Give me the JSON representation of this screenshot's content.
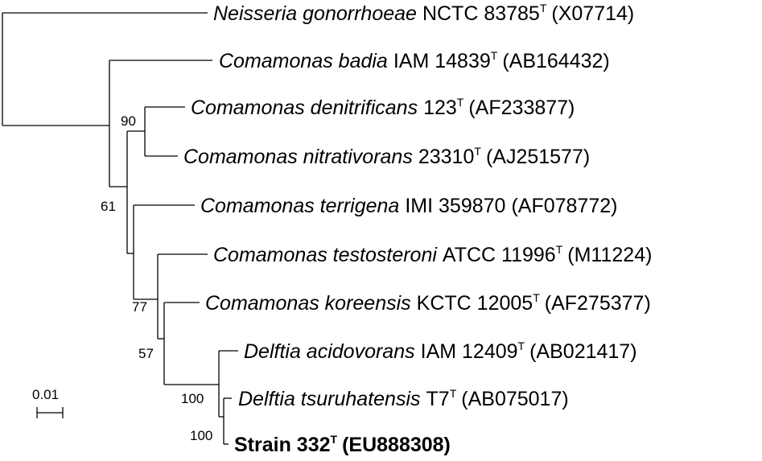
{
  "tree": {
    "taxa": [
      {
        "species": "Neisseria gonorrhoeae",
        "strain": "NCTC 83785",
        "type_mark": "T",
        "accession": "(X07714)",
        "bold": false
      },
      {
        "species": "Comamonas badia",
        "strain": "IAM 14839",
        "type_mark": "T",
        "accession": "(AB164432)",
        "bold": false
      },
      {
        "species": "Comamonas denitrificans",
        "strain": "123",
        "type_mark": "T",
        "accession": "(AF233877)",
        "bold": false
      },
      {
        "species": "Comamonas nitrativorans",
        "strain": "23310",
        "type_mark": "T",
        "accession": "(AJ251577)",
        "bold": false
      },
      {
        "species": "Comamonas terrigena",
        "strain": "IMI 359870",
        "type_mark": "",
        "accession": "(AF078772)",
        "bold": false
      },
      {
        "species": "Comamonas testosteroni",
        "strain": "ATCC 11996",
        "type_mark": "T",
        "accession": "(M11224)",
        "bold": false
      },
      {
        "species": "Comamonas koreensis",
        "strain": "KCTC 12005",
        "type_mark": "T",
        "accession": "(AF275377)",
        "bold": false
      },
      {
        "species": "Delftia acidovorans",
        "strain": "IAM 12409",
        "type_mark": "T",
        "accession": "(AB021417)",
        "bold": false
      },
      {
        "species": "Delftia tsuruhatensis",
        "strain": "T7",
        "type_mark": "T",
        "accession": "(AB075017)",
        "bold": false
      },
      {
        "species": "",
        "strain": "Strain 332",
        "type_mark": "T",
        "accession": "(EU888308)",
        "bold": true
      }
    ],
    "bootstrap": [
      "90",
      "61",
      "77",
      "57",
      "100",
      "100"
    ],
    "scale_bar": {
      "label": "0.01",
      "value": 0.01
    }
  }
}
